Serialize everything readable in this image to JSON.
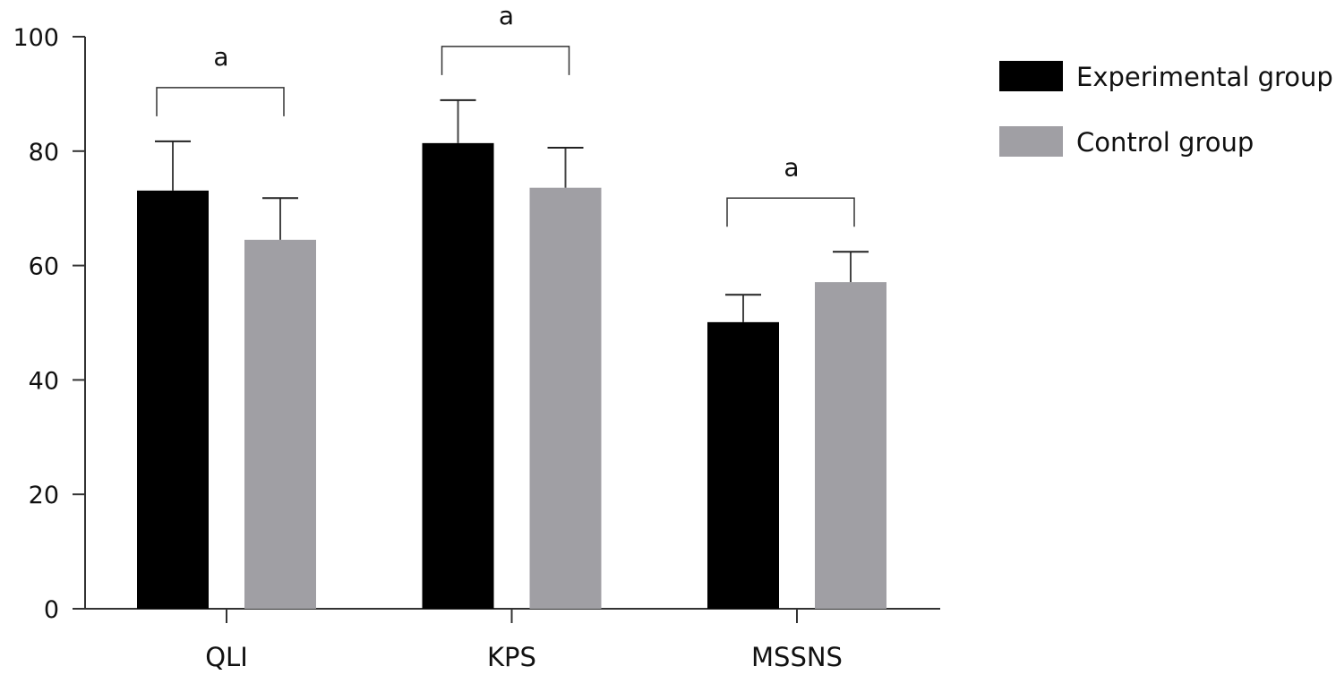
{
  "chart_data": {
    "type": "bar",
    "title": "",
    "xlabel": "",
    "ylabel": "",
    "ylim": [
      0,
      100
    ],
    "yticks": [
      0,
      20,
      40,
      60,
      80,
      100
    ],
    "grid": false,
    "legend_position": "top-right",
    "categories": [
      "QLI",
      "KPS",
      "MSSNS"
    ],
    "series": [
      {
        "name": "Experimental group",
        "color": "#000000",
        "values": [
          73.1,
          81.4,
          50.1
        ],
        "error_upper": [
          81.7,
          88.9,
          54.9
        ]
      },
      {
        "name": "Control group",
        "color": "#a09fa4",
        "values": [
          64.5,
          73.6,
          57.1
        ],
        "error_upper": [
          71.8,
          80.6,
          62.4
        ]
      }
    ],
    "annotations": [
      {
        "category": "QLI",
        "label": "a"
      },
      {
        "category": "KPS",
        "label": "a"
      },
      {
        "category": "MSSNS",
        "label": "a"
      }
    ]
  }
}
